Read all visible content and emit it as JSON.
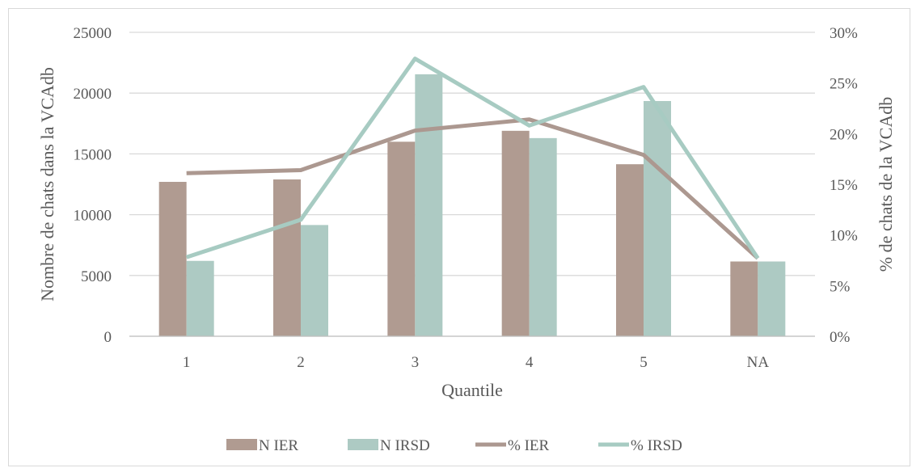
{
  "chart_data": {
    "type": "bar",
    "title": "",
    "categories": [
      "1",
      "2",
      "3",
      "4",
      "5",
      "NA"
    ],
    "xlabel": "Quantile",
    "ylabel": "Nombre de chats dans la VCAdb",
    "y2label": "% de chats de la VCAdb",
    "ylim": [
      0,
      25000
    ],
    "y2lim": [
      0,
      0.3
    ],
    "yticks": [
      "0",
      "5000",
      "10000",
      "15000",
      "20000",
      "25000"
    ],
    "y2ticks": [
      "0%",
      "5%",
      "10%",
      "15%",
      "20%",
      "25%",
      "30%"
    ],
    "grid": true,
    "legend_position": "bottom",
    "series": [
      {
        "name": "N IER",
        "kind": "bar",
        "axis": "left",
        "color": "#b09b91",
        "values": [
          12700,
          12900,
          16000,
          16900,
          14150,
          6150
        ]
      },
      {
        "name": "N IRSD",
        "kind": "bar",
        "axis": "left",
        "color": "#adcac3",
        "values": [
          6200,
          9150,
          21550,
          16300,
          19350,
          6150
        ]
      },
      {
        "name": "% IER",
        "kind": "line",
        "axis": "right",
        "color": "#ac9890",
        "values": [
          0.161,
          0.164,
          0.203,
          0.214,
          0.179,
          0.077
        ]
      },
      {
        "name": "% IRSD",
        "kind": "line",
        "axis": "right",
        "color": "#a7cbc2",
        "values": [
          0.078,
          0.115,
          0.274,
          0.208,
          0.246,
          0.077
        ]
      }
    ]
  }
}
